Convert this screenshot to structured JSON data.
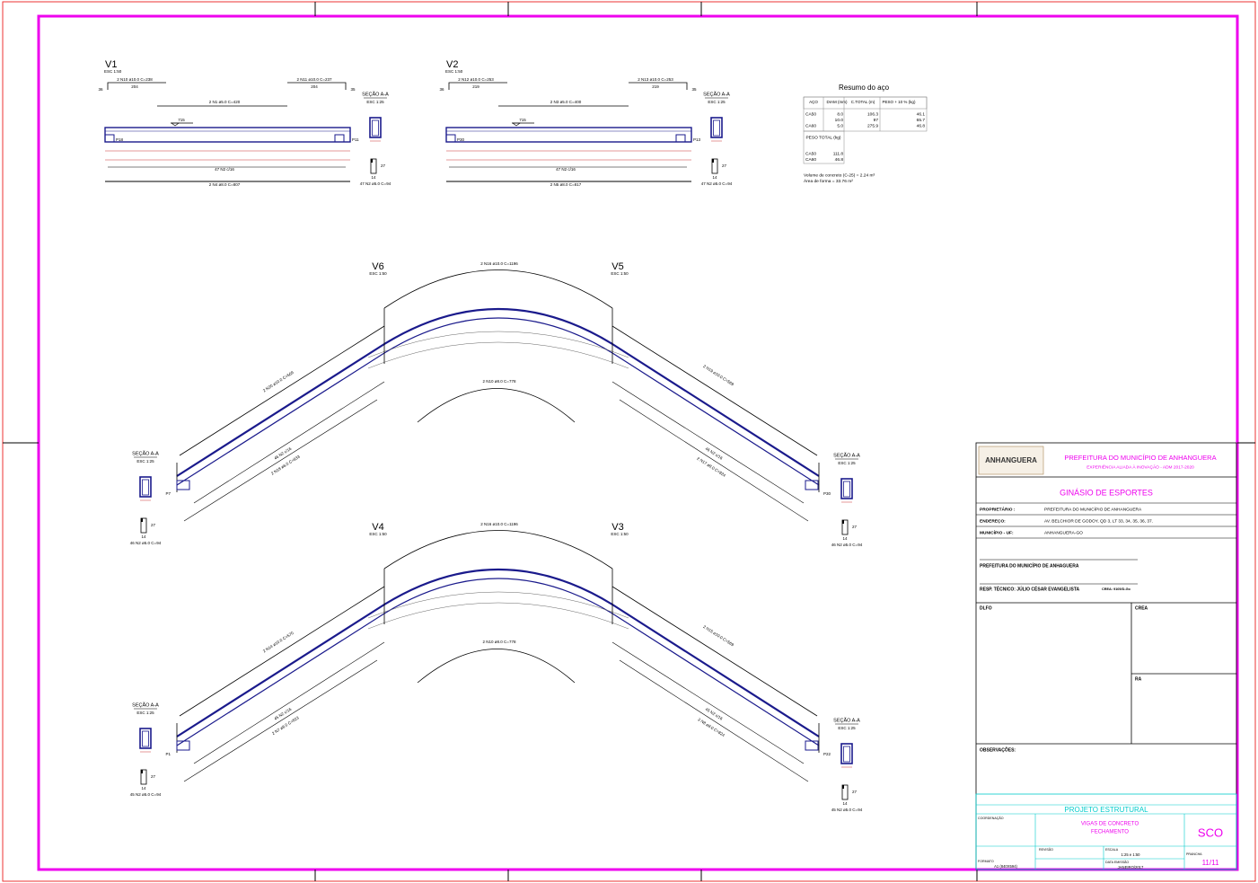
{
  "beams": [
    {
      "name": "V1",
      "scale": "ESC 1:50",
      "top_bars": [
        "2 N10 ø10.0  C=238",
        "2 N11 ø10.0  C=237"
      ],
      "top_lengths": [
        "204",
        "204"
      ],
      "ends": [
        "36",
        "35"
      ],
      "middle_bar": "2 N1 ø5.0  C=420",
      "level": "715",
      "supports": [
        "P18",
        "P11"
      ],
      "stirrups": "47 N2 c/16",
      "bottom_bar": "2 N4 ø8.0  C=807",
      "section": {
        "title": "SEÇÃO A-A",
        "scale": "ESC 1:25",
        "width": "14",
        "height": "27",
        "stirrup_label": "47 N2 ø5.0  C=94"
      }
    },
    {
      "name": "V2",
      "scale": "ESC 1:50",
      "top_bars": [
        "2 N12 ø10.0  C=253",
        "2 N13 ø10.0  C=253"
      ],
      "top_lengths": [
        "219",
        "219"
      ],
      "ends": [
        "36",
        "35"
      ],
      "middle_bar": "2 N3 ø5.0  C=400",
      "level": "715",
      "supports": [
        "P30",
        "P13"
      ],
      "stirrups": "47 N2 c/16",
      "bottom_bar": "2 N5 ø8.0  C=817",
      "section": {
        "title": "SEÇÃO A-A",
        "scale": "ESC 1:25",
        "width": "14",
        "height": "27",
        "stirrup_label": "47 N2 ø5.0  C=94"
      }
    }
  ],
  "steel_summary": {
    "title": "Resumo do aço",
    "headers": [
      "AÇO",
      "DIAM (mm)",
      "C.TOTAL (m)",
      "PESO + 10 % (kg)"
    ],
    "rows": [
      {
        "steel": "CA50",
        "diam": "8.0",
        "length": "106.3",
        "weight": "46.1"
      },
      {
        "diam": "10.0",
        "length": "97",
        "weight": "65.7"
      },
      {
        "steel": "CA60",
        "diam": "5.0",
        "length": "275.9",
        "weight": "46.8"
      }
    ],
    "total_header": "PESO TOTAL (kg)",
    "totals": [
      [
        "CA50",
        "111.8"
      ],
      [
        "CA60",
        "46.8"
      ]
    ],
    "notes": [
      "Volume de concreto (C-25) = 2.24 m³",
      "Área de forma = 33.76 m²"
    ]
  },
  "curved_beams": [
    {
      "left": {
        "name": "V6",
        "scale": "ESC 1:50",
        "support": "P7",
        "upper_bar": "2 N20 ø10.0  C=569",
        "lower_bar": "2 N18 ø8.0  C=833",
        "stirrups": "46 N2 c/16"
      },
      "right": {
        "name": "V5",
        "scale": "ESC 1:50",
        "support": "P30",
        "upper_bar": "2 N19 ø10.0  C=569",
        "lower_bar": "2 N17 ø8.0  C=824",
        "stirrups": "46 N2 c/16"
      },
      "top_bar": "2 N16 ø10.0  C=1196",
      "inner_bar": "2 N10 ø8.0  C=778",
      "section": {
        "title": "SEÇÃO A-A",
        "scale": "ESC 1:25",
        "width": "14",
        "height": "27",
        "stirrup_label": "46 N2 ø5.0  C=94"
      }
    },
    {
      "left": {
        "name": "V4",
        "scale": "ESC 1:50",
        "support": "P1",
        "upper_bar": "2 N14 ø10.0  C=570",
        "lower_bar": "2 N7 ø8.0  C=823",
        "stirrups": "45 N2 c/16"
      },
      "right": {
        "name": "V3",
        "scale": "ESC 1:50",
        "support": "P22",
        "upper_bar": "2 N15 ø10.0  C=569",
        "lower_bar": "2 N8 ø8.0  C=824",
        "stirrups": "45 N2 c/16"
      },
      "top_bar": "2 N16 ø10.0  C=1196",
      "inner_bar": "2 N10 ø8.0  C=778",
      "section": {
        "title": "SEÇÃO A-A",
        "scale": "ESC 1:25",
        "width": "14",
        "height": "27",
        "stirrup_label": "45 N2 ø5.0  C=94"
      }
    }
  ],
  "title_block": {
    "logo": "ANHANGUERA",
    "org": "PREFEITURA DO MUNICÍPIO DE ANHANGUERA",
    "motto": "EXPERIÊNCIA ALIADA À INOVAÇÃO - ADM 2017-2020",
    "project": "GINÁSIO DE ESPORTES",
    "fields": [
      [
        "PROPRIETÁRIO :",
        "PREFEITURA DO MUNICÍPIO DE ANHANGUERA"
      ],
      [
        "ENDEREÇO:",
        "AV. BELCHIOR DE GODOY, QD 3, LT  33, 34, 35, 36, 37."
      ],
      [
        "MUNICÍPIO - UF:",
        "ANHANGUERA-GO"
      ]
    ],
    "signature_org": "PREFEITURA DO MUNICÍPIO DE ANHAGUERA",
    "resp": "RESP. TÉCNICO:  JÚLIO CÉSAR EVANGELISTA",
    "crea_number": "CREA: 9105/D-Go",
    "box_labels": [
      "DLFO",
      "CREA",
      "RA",
      "OBSERVAÇÕES:"
    ],
    "discipline": "PROJETO ESTRUTURAL",
    "coordination": "COORDENAÇÃO",
    "sheet_title": [
      "VIGAS DE CONCRETO",
      "FECHAMENTO"
    ],
    "code": "SCO",
    "revision": "REVISÃO",
    "scale_label": "ESCALA",
    "scale": "1:25 e 1:50",
    "date_label": "DATA EMISSÃO",
    "date": "JANEIRO/2017",
    "sheet_label": "PRANCHA",
    "sheet": "11/11",
    "format_label": "FORMATO",
    "format": "A1 (840X594)"
  }
}
